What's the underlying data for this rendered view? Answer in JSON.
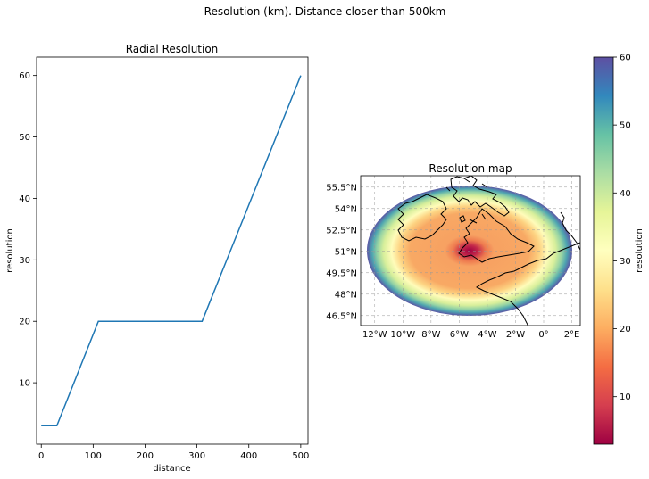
{
  "suptitle": "Resolution (km). Distance closer than 500km",
  "chart_data": [
    {
      "type": "line",
      "title": "Radial Resolution",
      "xlabel": "distance",
      "ylabel": "resolution",
      "xlim": [
        -9,
        514
      ],
      "ylim": [
        0,
        63
      ],
      "xticks": [
        0,
        100,
        200,
        300,
        400,
        500
      ],
      "yticks": [
        10,
        20,
        30,
        40,
        50,
        60
      ],
      "series": [
        {
          "x": [
            0,
            30,
            110,
            310,
            500
          ],
          "y": [
            3,
            3,
            20,
            20,
            60
          ],
          "color": "#1f77b4"
        }
      ]
    },
    {
      "type": "heatmap",
      "title": "Resolution map",
      "lon_range": [
        -13,
        2.6
      ],
      "lat_range": [
        45.8,
        56.3
      ],
      "center": {
        "lon": -5.0,
        "lat": 51.0
      },
      "radius_km": 500,
      "lon_ticks": [
        "12°W",
        "10°W",
        "8°W",
        "6°W",
        "4°W",
        "2°W",
        "0°",
        "2°E"
      ],
      "lon_tick_values": [
        -12,
        -10,
        -8,
        -6,
        -4,
        -2,
        0,
        2
      ],
      "lat_ticks": [
        "46.5°N",
        "48°N",
        "49.5°N",
        "51°N",
        "52.5°N",
        "54°N",
        "55.5°N"
      ],
      "lat_tick_values": [
        46.5,
        48,
        49.5,
        51,
        52.5,
        54,
        55.5
      ],
      "gridlines": true,
      "gridline_style": "dashed",
      "coastlines": true,
      "colormap": "Spectral",
      "colorbar": {
        "label": "resolution",
        "range": [
          3,
          60
        ],
        "ticks": [
          10,
          20,
          30,
          40,
          50,
          60
        ]
      }
    }
  ]
}
